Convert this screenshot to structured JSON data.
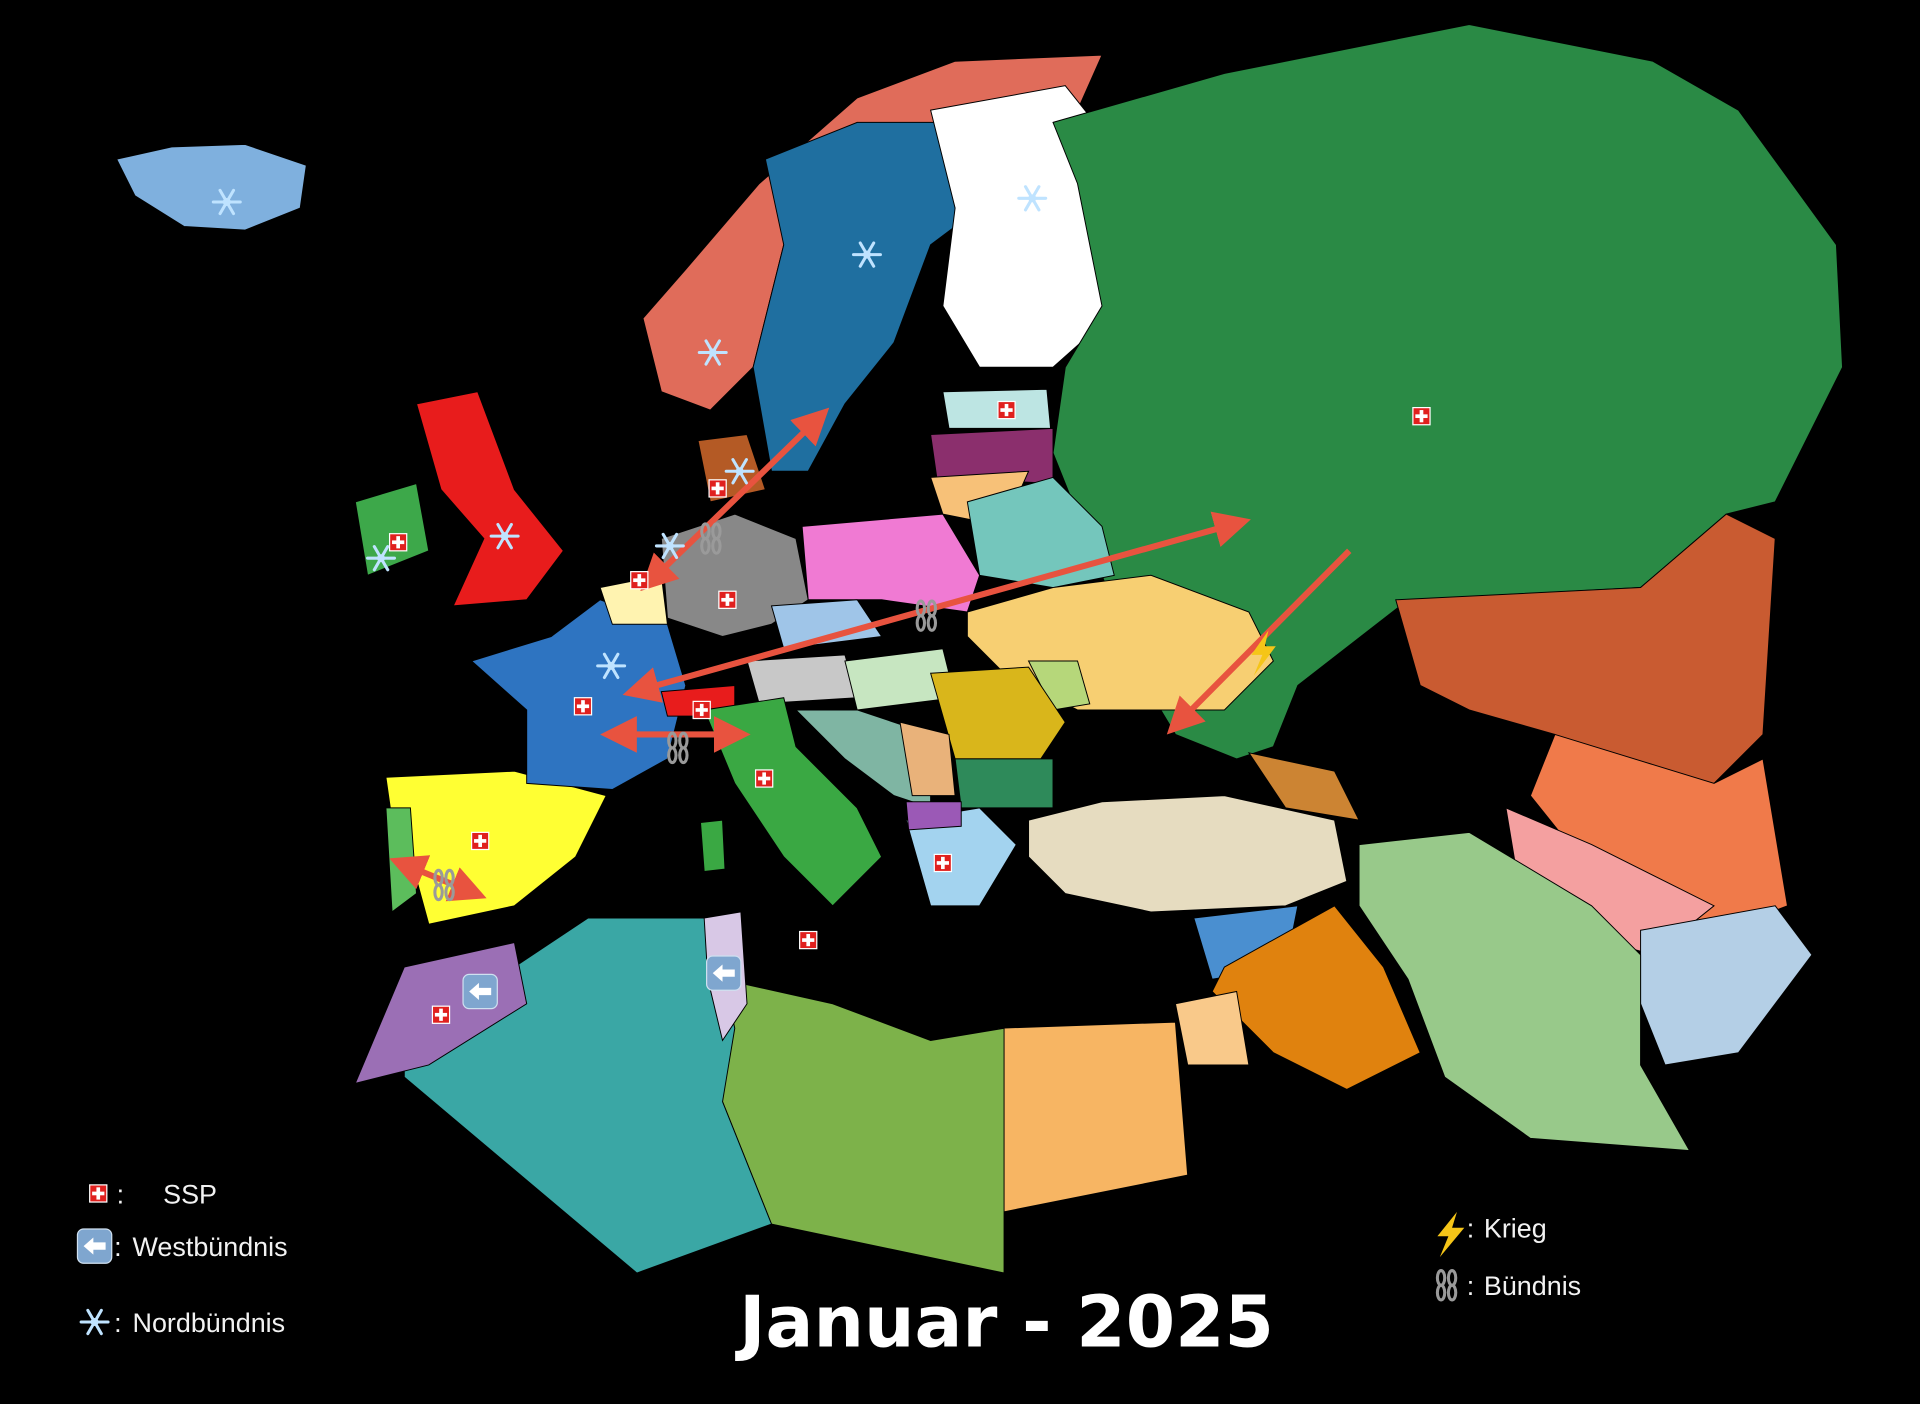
{
  "map": {
    "title": "Januar - 2025",
    "background": "#000000",
    "arrow_color": "#e8533f"
  },
  "legend": {
    "left": [
      {
        "icon": "swiss-flag-icon",
        "separator": ":",
        "label": "SSP"
      },
      {
        "icon": "left-arrow-icon",
        "separator": ":",
        "label": "Westbündnis"
      },
      {
        "icon": "snowflake-icon",
        "separator": ":",
        "label": "Nordbündnis"
      }
    ],
    "right": [
      {
        "icon": "lightning-icon",
        "separator": ":",
        "label": "Krieg"
      },
      {
        "icon": "chain-icon",
        "separator": ":",
        "label": "Bündnis"
      }
    ]
  }
}
